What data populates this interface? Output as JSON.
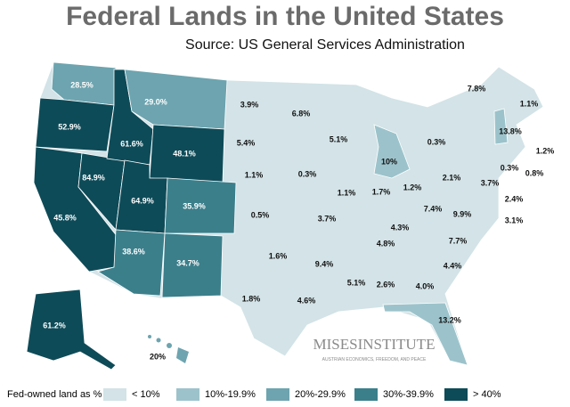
{
  "title": "Federal Lands in the United States",
  "subtitle": "Source: US General Services Administration",
  "logo": {
    "name": "MISESINSTITUTE",
    "tagline": "AUSTRIAN ECONOMICS, FREEDOM, AND PEACE"
  },
  "legend": {
    "title": "Fed-owned land as %",
    "items": [
      {
        "label": "< 10%",
        "color": "#d3e3e7"
      },
      {
        "label": "10%-19.9%",
        "color": "#9cc3cb"
      },
      {
        "label": "20%-29.9%",
        "color": "#6da4af"
      },
      {
        "label": "30%-39.9%",
        "color": "#3b7f8b"
      },
      {
        "label": "> 40%",
        "color": "#0e4b58"
      }
    ]
  },
  "labels": [
    {
      "text": "28.5%",
      "class": 2
    },
    {
      "text": "29.0%",
      "class": 2
    },
    {
      "text": "3.9%",
      "class": 0
    },
    {
      "text": "6.8%",
      "class": 0
    },
    {
      "text": "7.8%",
      "class": 0
    },
    {
      "text": "1.1%",
      "class": 0
    },
    {
      "text": "52.9%",
      "class": 4
    },
    {
      "text": "61.6%",
      "class": 4
    },
    {
      "text": "48.1%",
      "class": 4
    },
    {
      "text": "5.4%",
      "class": 0
    },
    {
      "text": "5.1%",
      "class": 0
    },
    {
      "text": "0.3%",
      "class": 0
    },
    {
      "text": "13.8%",
      "class": 1
    },
    {
      "text": "1.2%",
      "class": 0
    },
    {
      "text": "10%",
      "class": 1
    },
    {
      "text": "0.3%",
      "class": 0
    },
    {
      "text": "0.8%",
      "class": 0
    },
    {
      "text": "84.9%",
      "class": 4
    },
    {
      "text": "1.1%",
      "class": 0
    },
    {
      "text": "0.3%",
      "class": 0
    },
    {
      "text": "64.9%",
      "class": 4
    },
    {
      "text": "35.9%",
      "class": 3
    },
    {
      "text": "1.1%",
      "class": 0
    },
    {
      "text": "1.7%",
      "class": 0
    },
    {
      "text": "1.2%",
      "class": 0
    },
    {
      "text": "2.1%",
      "class": 0
    },
    {
      "text": "3.7%",
      "class": 0
    },
    {
      "text": "2.4%",
      "class": 0
    },
    {
      "text": "3.1%",
      "class": 0
    },
    {
      "text": "45.8%",
      "class": 4
    },
    {
      "text": "0.5%",
      "class": 0
    },
    {
      "text": "3.7%",
      "class": 0
    },
    {
      "text": "4.3%",
      "class": 0
    },
    {
      "text": "7.4%",
      "class": 0
    },
    {
      "text": "9.9%",
      "class": 0
    },
    {
      "text": "4.8%",
      "class": 0
    },
    {
      "text": "7.7%",
      "class": 0
    },
    {
      "text": "38.6%",
      "class": 3
    },
    {
      "text": "34.7%",
      "class": 3
    },
    {
      "text": "1.6%",
      "class": 0
    },
    {
      "text": "9.4%",
      "class": 0
    },
    {
      "text": "4.4%",
      "class": 0
    },
    {
      "text": "5.1%",
      "class": 0
    },
    {
      "text": "2.6%",
      "class": 0
    },
    {
      "text": "4.0%",
      "class": 0
    },
    {
      "text": "1.8%",
      "class": 0
    },
    {
      "text": "4.6%",
      "class": 0
    },
    {
      "text": "13.2%",
      "class": 1
    },
    {
      "text": "61.2%",
      "class": 4
    },
    {
      "text": "20%",
      "class": 2
    }
  ]
}
